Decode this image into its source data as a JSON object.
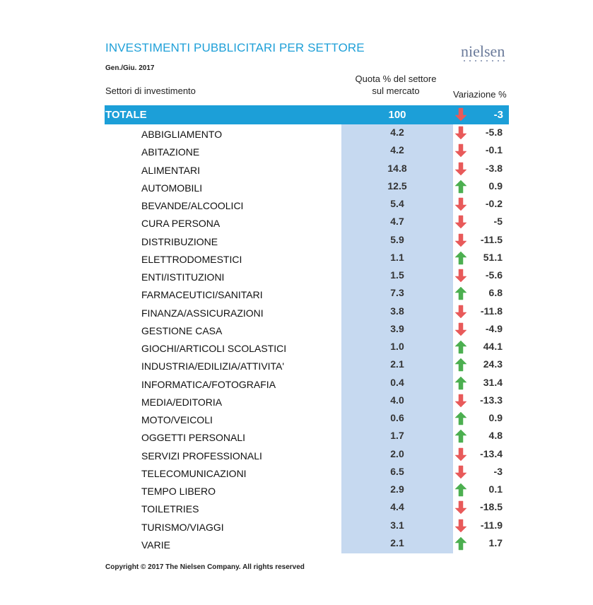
{
  "title": "INVESTIMENTI PUBBLICITARI PER SETTORE",
  "logo": "nielsen",
  "period": "Gen./Giu. 2017",
  "headers": {
    "sector": "Settori di investimento",
    "share_line1": "Quota % del settore",
    "share_line2": "sul mercato",
    "change": "Variazione %"
  },
  "total": {
    "label": "TOTALE",
    "share": "100",
    "trend": "down",
    "change": "-3"
  },
  "colors": {
    "accent": "#1c9fd8",
    "share_bg": "#c6d9f0",
    "up": "#4caf50",
    "down": "#e85a5a"
  },
  "rows": [
    {
      "label": "ABBIGLIAMENTO",
      "share": "4.2",
      "trend": "down",
      "change": "-5.8"
    },
    {
      "label": "ABITAZIONE",
      "share": "4.2",
      "trend": "down",
      "change": "-0.1"
    },
    {
      "label": "ALIMENTARI",
      "share": "14.8",
      "trend": "down",
      "change": "-3.8"
    },
    {
      "label": "AUTOMOBILI",
      "share": "12.5",
      "trend": "up",
      "change": "0.9"
    },
    {
      "label": "BEVANDE/ALCOOLICI",
      "share": "5.4",
      "trend": "down",
      "change": "-0.2"
    },
    {
      "label": "CURA PERSONA",
      "share": "4.7",
      "trend": "down",
      "change": "-5"
    },
    {
      "label": "DISTRIBUZIONE",
      "share": "5.9",
      "trend": "down",
      "change": "-11.5"
    },
    {
      "label": "ELETTRODOMESTICI",
      "share": "1.1",
      "trend": "up",
      "change": "51.1"
    },
    {
      "label": "ENTI/ISTITUZIONI",
      "share": "1.5",
      "trend": "down",
      "change": "-5.6"
    },
    {
      "label": "FARMACEUTICI/SANITARI",
      "share": "7.3",
      "trend": "up",
      "change": "6.8"
    },
    {
      "label": "FINANZA/ASSICURAZIONI",
      "share": "3.8",
      "trend": "down",
      "change": "-11.8"
    },
    {
      "label": "GESTIONE CASA",
      "share": "3.9",
      "trend": "down",
      "change": "-4.9"
    },
    {
      "label": "GIOCHI/ARTICOLI SCOLASTICI",
      "share": "1.0",
      "trend": "up",
      "change": "44.1"
    },
    {
      "label": "INDUSTRIA/EDILIZIA/ATTIVITA'",
      "share": "2.1",
      "trend": "up",
      "change": "24.3"
    },
    {
      "label": "INFORMATICA/FOTOGRAFIA",
      "share": "0.4",
      "trend": "up",
      "change": "31.4"
    },
    {
      "label": "MEDIA/EDITORIA",
      "share": "4.0",
      "trend": "down",
      "change": "-13.3"
    },
    {
      "label": "MOTO/VEICOLI",
      "share": "0.6",
      "trend": "up",
      "change": "0.9"
    },
    {
      "label": "OGGETTI PERSONALI",
      "share": "1.7",
      "trend": "up",
      "change": "4.8"
    },
    {
      "label": "SERVIZI PROFESSIONALI",
      "share": "2.0",
      "trend": "down",
      "change": "-13.4"
    },
    {
      "label": "TELECOMUNICAZIONI",
      "share": "6.5",
      "trend": "down",
      "change": "-3"
    },
    {
      "label": "TEMPO LIBERO",
      "share": "2.9",
      "trend": "up",
      "change": "0.1"
    },
    {
      "label": "TOILETRIES",
      "share": "4.4",
      "trend": "down",
      "change": "-18.5"
    },
    {
      "label": "TURISMO/VIAGGI",
      "share": "3.1",
      "trend": "down",
      "change": "-11.9"
    },
    {
      "label": "VARIE",
      "share": "2.1",
      "trend": "up",
      "change": "1.7"
    }
  ],
  "copyright": "Copyright © 2017 The Nielsen Company. All rights reserved"
}
